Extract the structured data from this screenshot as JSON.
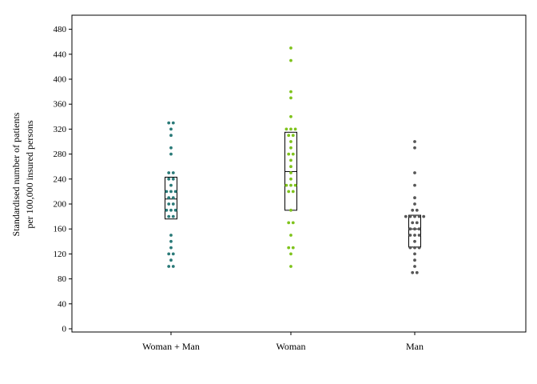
{
  "chart_data": {
    "type": "scatter",
    "subtype": "dot-plot-with-box",
    "title": "",
    "xlabel": "",
    "ylabel": "Standardised number of patients",
    "ylabel_line2": "per 100,000 insured persons",
    "ylim": [
      0,
      500
    ],
    "yticks": [
      0,
      40,
      80,
      120,
      160,
      200,
      240,
      280,
      320,
      360,
      400,
      440,
      480
    ],
    "grid": false,
    "legend": "none",
    "categories": [
      "Woman + Man",
      "Woman",
      "Man"
    ],
    "series": [
      {
        "category": "Woman + Man",
        "color": "#2a7a78",
        "box": {
          "q1": 176,
          "median": 208,
          "q3": 243
        },
        "values": [
          330,
          330,
          320,
          310,
          290,
          280,
          250,
          250,
          240,
          240,
          230,
          220,
          220,
          220,
          210,
          210,
          200,
          200,
          190,
          190,
          190,
          180,
          180,
          150,
          140,
          130,
          120,
          120,
          110,
          100,
          100
        ]
      },
      {
        "category": "Woman",
        "color": "#7fc31c",
        "box": {
          "q1": 190,
          "median": 252,
          "q3": 315
        },
        "values": [
          450,
          430,
          380,
          370,
          340,
          320,
          320,
          320,
          310,
          310,
          300,
          290,
          280,
          280,
          270,
          260,
          250,
          240,
          230,
          230,
          230,
          220,
          220,
          190,
          170,
          170,
          150,
          130,
          130,
          120,
          100
        ]
      },
      {
        "category": "Man",
        "color": "#575757",
        "box": {
          "q1": 131,
          "median": 160,
          "q3": 182
        },
        "values": [
          300,
          290,
          250,
          230,
          210,
          200,
          190,
          190,
          180,
          180,
          180,
          180,
          180,
          170,
          170,
          160,
          160,
          160,
          150,
          150,
          150,
          140,
          130,
          130,
          130,
          120,
          110,
          100,
          90,
          90
        ]
      }
    ]
  }
}
